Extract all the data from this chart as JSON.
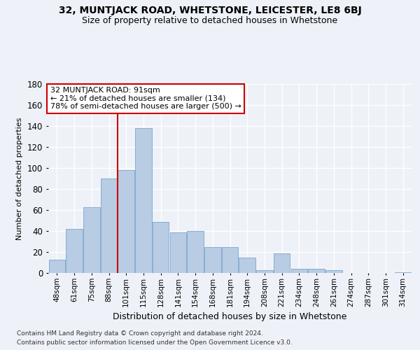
{
  "title1": "32, MUNTJACK ROAD, WHETSTONE, LEICESTER, LE8 6BJ",
  "title2": "Size of property relative to detached houses in Whetstone",
  "xlabel": "Distribution of detached houses by size in Whetstone",
  "ylabel": "Number of detached properties",
  "categories": [
    "48sqm",
    "61sqm",
    "75sqm",
    "88sqm",
    "101sqm",
    "115sqm",
    "128sqm",
    "141sqm",
    "154sqm",
    "168sqm",
    "181sqm",
    "194sqm",
    "208sqm",
    "221sqm",
    "234sqm",
    "248sqm",
    "261sqm",
    "274sqm",
    "287sqm",
    "301sqm",
    "314sqm"
  ],
  "values": [
    13,
    42,
    63,
    90,
    98,
    138,
    49,
    39,
    40,
    25,
    25,
    15,
    3,
    19,
    4,
    4,
    3,
    0,
    0,
    0,
    1
  ],
  "bar_color": "#b8cce4",
  "bar_edge_color": "#7ba7cc",
  "vline_x": 3.5,
  "vline_color": "#cc0000",
  "annotation_title": "32 MUNTJACK ROAD: 91sqm",
  "annotation_line1": "← 21% of detached houses are smaller (134)",
  "annotation_line2": "78% of semi-detached houses are larger (500) →",
  "annotation_box_color": "#ffffff",
  "annotation_box_edge": "#cc0000",
  "ylim": [
    0,
    180
  ],
  "yticks": [
    0,
    20,
    40,
    60,
    80,
    100,
    120,
    140,
    160,
    180
  ],
  "footer1": "Contains HM Land Registry data © Crown copyright and database right 2024.",
  "footer2": "Contains public sector information licensed under the Open Government Licence v3.0.",
  "bg_color": "#eef2f8",
  "grid_color": "#ffffff"
}
